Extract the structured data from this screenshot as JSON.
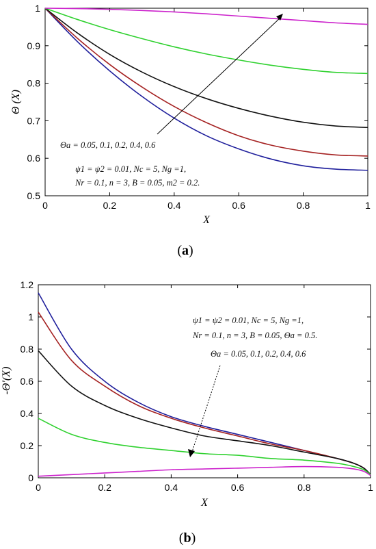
{
  "colors": {
    "blue": "#1f1f9c",
    "red": "#a52222",
    "black": "#111111",
    "green": "#2fd12f",
    "magenta": "#cc22cc"
  },
  "chart_data": [
    {
      "type": "line",
      "panel_label": {
        "open": "(",
        "letter": "a",
        "close": ")"
      },
      "xlabel": "X",
      "ylabel": "Θ (X)",
      "xlim": [
        0,
        1
      ],
      "ylim": [
        0.5,
        1
      ],
      "xticks": [
        "0",
        "0.2",
        "0.4",
        "0.6",
        "0.8",
        "1"
      ],
      "yticks": [
        "0.5",
        "0.6",
        "0.7",
        "0.8",
        "0.9",
        "1"
      ],
      "x": [
        0,
        0.1,
        0.2,
        0.3,
        0.4,
        0.5,
        0.6,
        0.7,
        0.8,
        0.9,
        1.0
      ],
      "series": [
        {
          "color": "#1f1f9c",
          "values": [
            1.0,
            0.911,
            0.833,
            0.765,
            0.707,
            0.66,
            0.625,
            0.598,
            0.58,
            0.571,
            0.568
          ]
        },
        {
          "color": "#a52222",
          "values": [
            1.0,
            0.92,
            0.85,
            0.79,
            0.738,
            0.695,
            0.66,
            0.635,
            0.619,
            0.609,
            0.606
          ]
        },
        {
          "color": "#111111",
          "values": [
            1.0,
            0.934,
            0.877,
            0.83,
            0.791,
            0.759,
            0.733,
            0.712,
            0.696,
            0.686,
            0.682
          ]
        },
        {
          "color": "#2fd12f",
          "values": [
            1.0,
            0.97,
            0.943,
            0.919,
            0.897,
            0.878,
            0.862,
            0.848,
            0.837,
            0.829,
            0.826
          ]
        },
        {
          "color": "#cc22cc",
          "values": [
            1.0,
            0.999,
            0.997,
            0.994,
            0.99,
            0.985,
            0.979,
            0.973,
            0.967,
            0.961,
            0.957
          ]
        }
      ],
      "annotations": {
        "arrow_label": "Θa = 0.05, 0.1, 0.2, 0.4, 0.6",
        "params_line1": "ψ1 = ψ2 = 0.01, Nc = 5, Ng =1,",
        "params_line2": "Nr = 0.1, n = 3, B = 0.05,  m2 = 0.2."
      }
    },
    {
      "type": "line",
      "panel_label": {
        "open": "(",
        "letter": "b",
        "close": ")"
      },
      "xlabel": "X",
      "ylabel": "-Θ′(X)",
      "xlim": [
        0,
        1
      ],
      "ylim": [
        0,
        1.2
      ],
      "xticks": [
        "0",
        "0.2",
        "0.4",
        "0.6",
        "0.8",
        "1"
      ],
      "yticks": [
        "0",
        "0.2",
        "0.4",
        "0.6",
        "0.8",
        "1",
        "1.2"
      ],
      "x": [
        0,
        0.1,
        0.2,
        0.3,
        0.4,
        0.5,
        0.6,
        0.7,
        0.8,
        0.9,
        0.95,
        0.98,
        1.0
      ],
      "series": [
        {
          "color": "#1f1f9c",
          "values": [
            1.15,
            0.8,
            0.6,
            0.47,
            0.38,
            0.32,
            0.27,
            0.22,
            0.17,
            0.12,
            0.09,
            0.06,
            0.02
          ]
        },
        {
          "color": "#a52222",
          "values": [
            1.03,
            0.73,
            0.57,
            0.45,
            0.37,
            0.31,
            0.26,
            0.21,
            0.17,
            0.12,
            0.09,
            0.06,
            0.02
          ]
        },
        {
          "color": "#111111",
          "values": [
            0.79,
            0.57,
            0.45,
            0.37,
            0.31,
            0.26,
            0.23,
            0.2,
            0.16,
            0.12,
            0.09,
            0.06,
            0.02
          ]
        },
        {
          "color": "#2fd12f",
          "values": [
            0.37,
            0.27,
            0.22,
            0.19,
            0.17,
            0.15,
            0.14,
            0.12,
            0.11,
            0.09,
            0.07,
            0.05,
            0.02
          ]
        },
        {
          "color": "#cc22cc",
          "values": [
            0.01,
            0.02,
            0.03,
            0.04,
            0.05,
            0.055,
            0.06,
            0.065,
            0.07,
            0.065,
            0.055,
            0.04,
            0.015
          ]
        }
      ],
      "annotations": {
        "params_line1": "ψ1 = ψ2 = 0.01, Nc = 5, Ng =1,",
        "params_line2": "Nr = 0.1, n = 3, B = 0.05,  Θa = 0.5.",
        "arrow_label": "Θa = 0.05, 0.1, 0.2, 0.4, 0.6"
      }
    }
  ]
}
